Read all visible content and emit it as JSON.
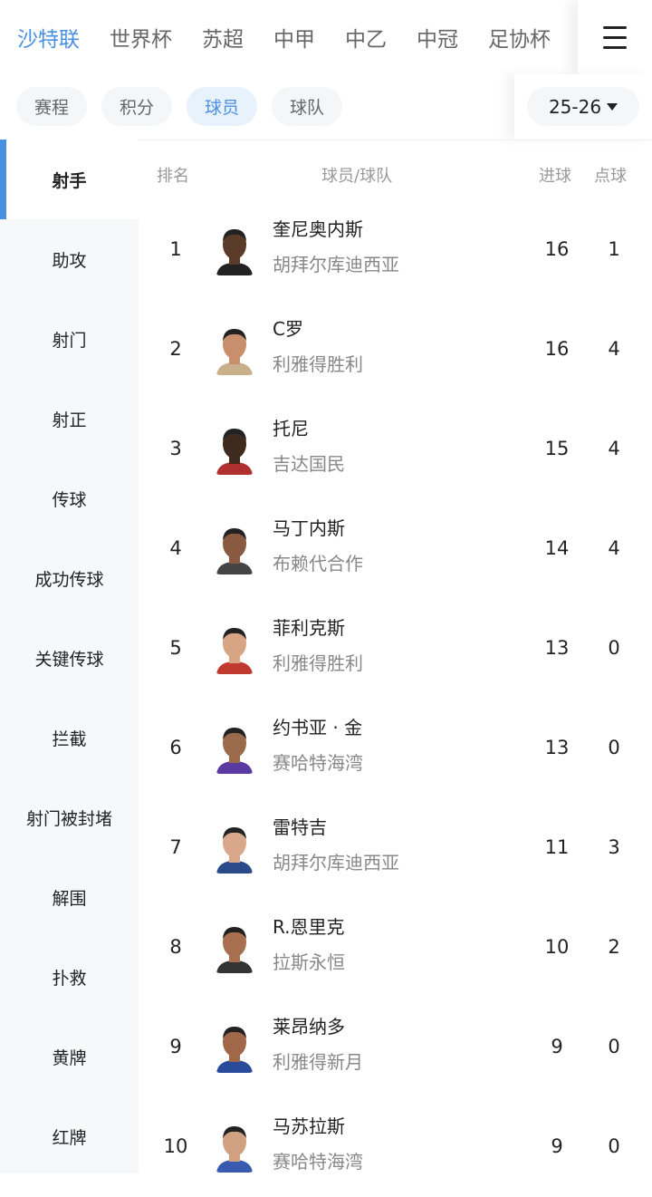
{
  "leagues": [
    "沙特联",
    "世界杯",
    "苏超",
    "中甲",
    "中乙",
    "中冠",
    "足协杯"
  ],
  "active_league": 0,
  "subtabs": [
    "赛程",
    "积分",
    "球员",
    "球队"
  ],
  "active_subtab": 2,
  "season": "25-26",
  "sidebar": [
    "射手",
    "助攻",
    "射门",
    "射正",
    "传球",
    "成功传球",
    "关键传球",
    "拦截",
    "射门被封堵",
    "解围",
    "扑救",
    "黄牌",
    "红牌"
  ],
  "active_sidebar": 0,
  "headers": {
    "rank": "排名",
    "player": "球员/球队",
    "goals": "进球",
    "pens": "点球"
  },
  "rows": [
    {
      "rank": "1",
      "name": "奎尼奥内斯",
      "team": "胡拜尔库迪西亚",
      "goals": "16",
      "pens": "1",
      "skin": "#5a3a28",
      "shirt": "#222"
    },
    {
      "rank": "2",
      "name": "C罗",
      "team": "利雅得胜利",
      "goals": "16",
      "pens": "4",
      "skin": "#c98e6b",
      "shirt": "#c8b08a"
    },
    {
      "rank": "3",
      "name": "托尼",
      "team": "吉达国民",
      "goals": "15",
      "pens": "4",
      "skin": "#3f2a1e",
      "shirt": "#b03030"
    },
    {
      "rank": "4",
      "name": "马丁内斯",
      "team": "布赖代合作",
      "goals": "14",
      "pens": "4",
      "skin": "#8a5a40",
      "shirt": "#444"
    },
    {
      "rank": "5",
      "name": "菲利克斯",
      "team": "利雅得胜利",
      "goals": "13",
      "pens": "0",
      "skin": "#d7a584",
      "shirt": "#c03a30"
    },
    {
      "rank": "6",
      "name": "约书亚 · 金",
      "team": "赛哈特海湾",
      "goals": "13",
      "pens": "0",
      "skin": "#9a6a4a",
      "shirt": "#5a3aa0"
    },
    {
      "rank": "7",
      "name": "雷特吉",
      "team": "胡拜尔库迪西亚",
      "goals": "11",
      "pens": "3",
      "skin": "#d9a88a",
      "shirt": "#2a4a8a"
    },
    {
      "rank": "8",
      "name": "R.恩里克",
      "team": "拉斯永恒",
      "goals": "10",
      "pens": "2",
      "skin": "#a87050",
      "shirt": "#333"
    },
    {
      "rank": "9",
      "name": "莱昂纳多",
      "team": "利雅得新月",
      "goals": "9",
      "pens": "0",
      "skin": "#a06848",
      "shirt": "#2a4a9a"
    },
    {
      "rank": "10",
      "name": "马苏拉斯",
      "team": "赛哈特海湾",
      "goals": "9",
      "pens": "0",
      "skin": "#d0a080",
      "shirt": "#3a5ab0"
    }
  ],
  "colors": {
    "accent": "#4a90e2"
  }
}
